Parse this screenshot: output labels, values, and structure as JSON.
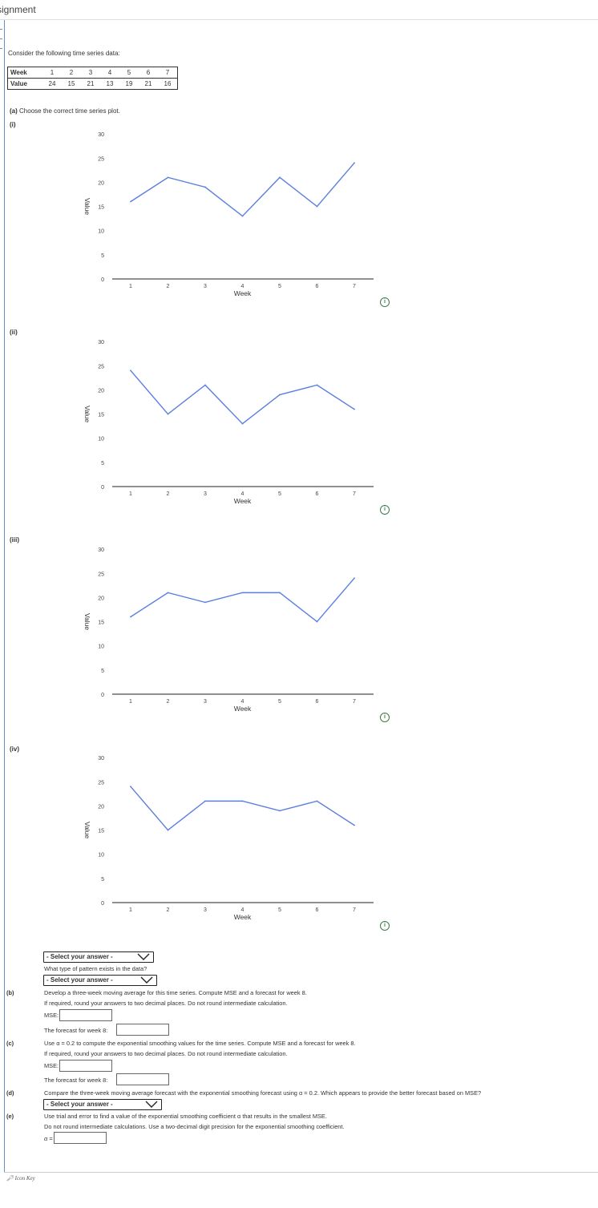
{
  "header": {
    "title": "signment"
  },
  "intro": "Consider the following time series data:",
  "table": {
    "week_label": "Week",
    "value_label": "Value",
    "weeks": [
      "1",
      "2",
      "3",
      "4",
      "5",
      "6",
      "7"
    ],
    "values": [
      "24",
      "15",
      "21",
      "13",
      "19",
      "21",
      "16"
    ]
  },
  "part_a": {
    "label": "(a)",
    "text": "Choose the correct time series plot."
  },
  "plots": [
    {
      "label": "(i)",
      "values": [
        16,
        21,
        19,
        13,
        21,
        15,
        24
      ]
    },
    {
      "label": "(ii)",
      "values": [
        24,
        15,
        21,
        13,
        19,
        21,
        16
      ]
    },
    {
      "label": "(iii)",
      "values": [
        16,
        21,
        19,
        21,
        21,
        15,
        24
      ]
    },
    {
      "label": "(iv)",
      "values": [
        24,
        15,
        21,
        21,
        19,
        21,
        16
      ]
    }
  ],
  "chart_data": [
    {
      "type": "line",
      "title": "",
      "xlabel": "Week",
      "ylabel": "Value",
      "x": [
        1,
        2,
        3,
        4,
        5,
        6,
        7
      ],
      "ylim": [
        0,
        30
      ],
      "yticks": [
        0,
        5,
        10,
        15,
        20,
        25,
        30
      ],
      "series": [
        {
          "values": [
            16,
            21,
            19,
            13,
            21,
            15,
            24
          ]
        }
      ],
      "grid": false
    },
    {
      "type": "line",
      "title": "",
      "xlabel": "Week",
      "ylabel": "Value",
      "x": [
        1,
        2,
        3,
        4,
        5,
        6,
        7
      ],
      "ylim": [
        0,
        30
      ],
      "yticks": [
        0,
        5,
        10,
        15,
        20,
        25,
        30
      ],
      "series": [
        {
          "values": [
            24,
            15,
            21,
            13,
            19,
            21,
            16
          ]
        }
      ],
      "grid": false
    },
    {
      "type": "line",
      "title": "",
      "xlabel": "Week",
      "ylabel": "Value",
      "x": [
        1,
        2,
        3,
        4,
        5,
        6,
        7
      ],
      "ylim": [
        0,
        30
      ],
      "yticks": [
        0,
        5,
        10,
        15,
        20,
        25,
        30
      ],
      "series": [
        {
          "values": [
            16,
            21,
            19,
            21,
            21,
            15,
            24
          ]
        }
      ],
      "grid": false
    },
    {
      "type": "line",
      "title": "",
      "xlabel": "Week",
      "ylabel": "Value",
      "x": [
        1,
        2,
        3,
        4,
        5,
        6,
        7
      ],
      "ylim": [
        0,
        30
      ],
      "yticks": [
        0,
        5,
        10,
        15,
        20,
        25,
        30
      ],
      "series": [
        {
          "values": [
            24,
            15,
            21,
            21,
            19,
            21,
            16
          ]
        }
      ],
      "grid": false
    }
  ],
  "axis": {
    "xlabel": "Week",
    "ylabel": "Value",
    "yticks": [
      "0",
      "5",
      "10",
      "15",
      "20",
      "25",
      "30"
    ],
    "xticks": [
      "1",
      "2",
      "3",
      "4",
      "5",
      "6",
      "7"
    ]
  },
  "colors": {
    "line": "#5b7fde",
    "accent": "#3d7a4a"
  },
  "info_icon": "i",
  "select_placeholder": "- Select your answer -",
  "pattern_question": "What type of pattern exists in the data?",
  "part_b": {
    "label": "(b)",
    "text1": "Develop a three-week moving average for this time series. Compute MSE and a forecast for week 8.",
    "text2": "If required, round your answers to two decimal places. Do not round intermediate calculation.",
    "mse_label": "MSE:",
    "forecast_label": "The forecast for week 8:"
  },
  "part_c": {
    "label": "(c)",
    "text1": "Use α = 0.2 to compute the exponential smoothing values for the time series. Compute MSE and a forecast for week 8.",
    "text2": "If required, round your answers to two decimal places. Do not round intermediate calculation.",
    "mse_label": "MSE:",
    "forecast_label": "The forecast for week 8:"
  },
  "part_d": {
    "label": "(d)",
    "text1": "Compare the three-week moving average forecast with the exponential smoothing forecast using α = 0.2. Which appears to provide the better forecast based on MSE?"
  },
  "part_e": {
    "label": "(e)",
    "text1": "Use trial and error to find a value of the exponential smoothing coefficient α that results in the smallest MSE.",
    "text2": "Do not round intermediate calculations. Use a two-decimal digit precision for the exponential smoothing coefficient.",
    "alpha_label": "α ="
  },
  "footer": {
    "icon_key": "Icon Key"
  }
}
